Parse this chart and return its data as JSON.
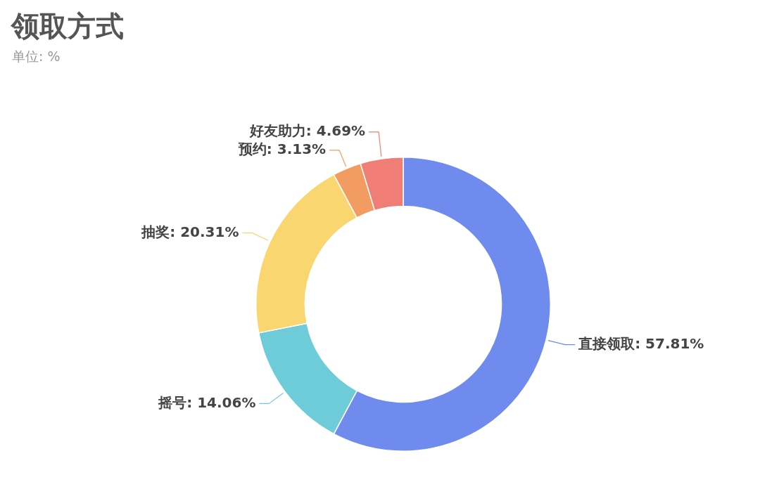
{
  "chart_data": {
    "type": "donut",
    "title": "领取方式",
    "subtitle": "单位: %",
    "categories": [
      "直接领取",
      "摇号",
      "抽奖",
      "预约",
      "好友助力"
    ],
    "values": [
      57.81,
      14.06,
      20.31,
      3.13,
      4.69
    ],
    "value_labels": [
      "57.81%",
      "14.06%",
      "20.31%",
      "3.13%",
      "4.69%"
    ],
    "colors": [
      "#6e8bed",
      "#6dccd7",
      "#f9d66f",
      "#f39c62",
      "#f07e76"
    ],
    "legend": false
  }
}
